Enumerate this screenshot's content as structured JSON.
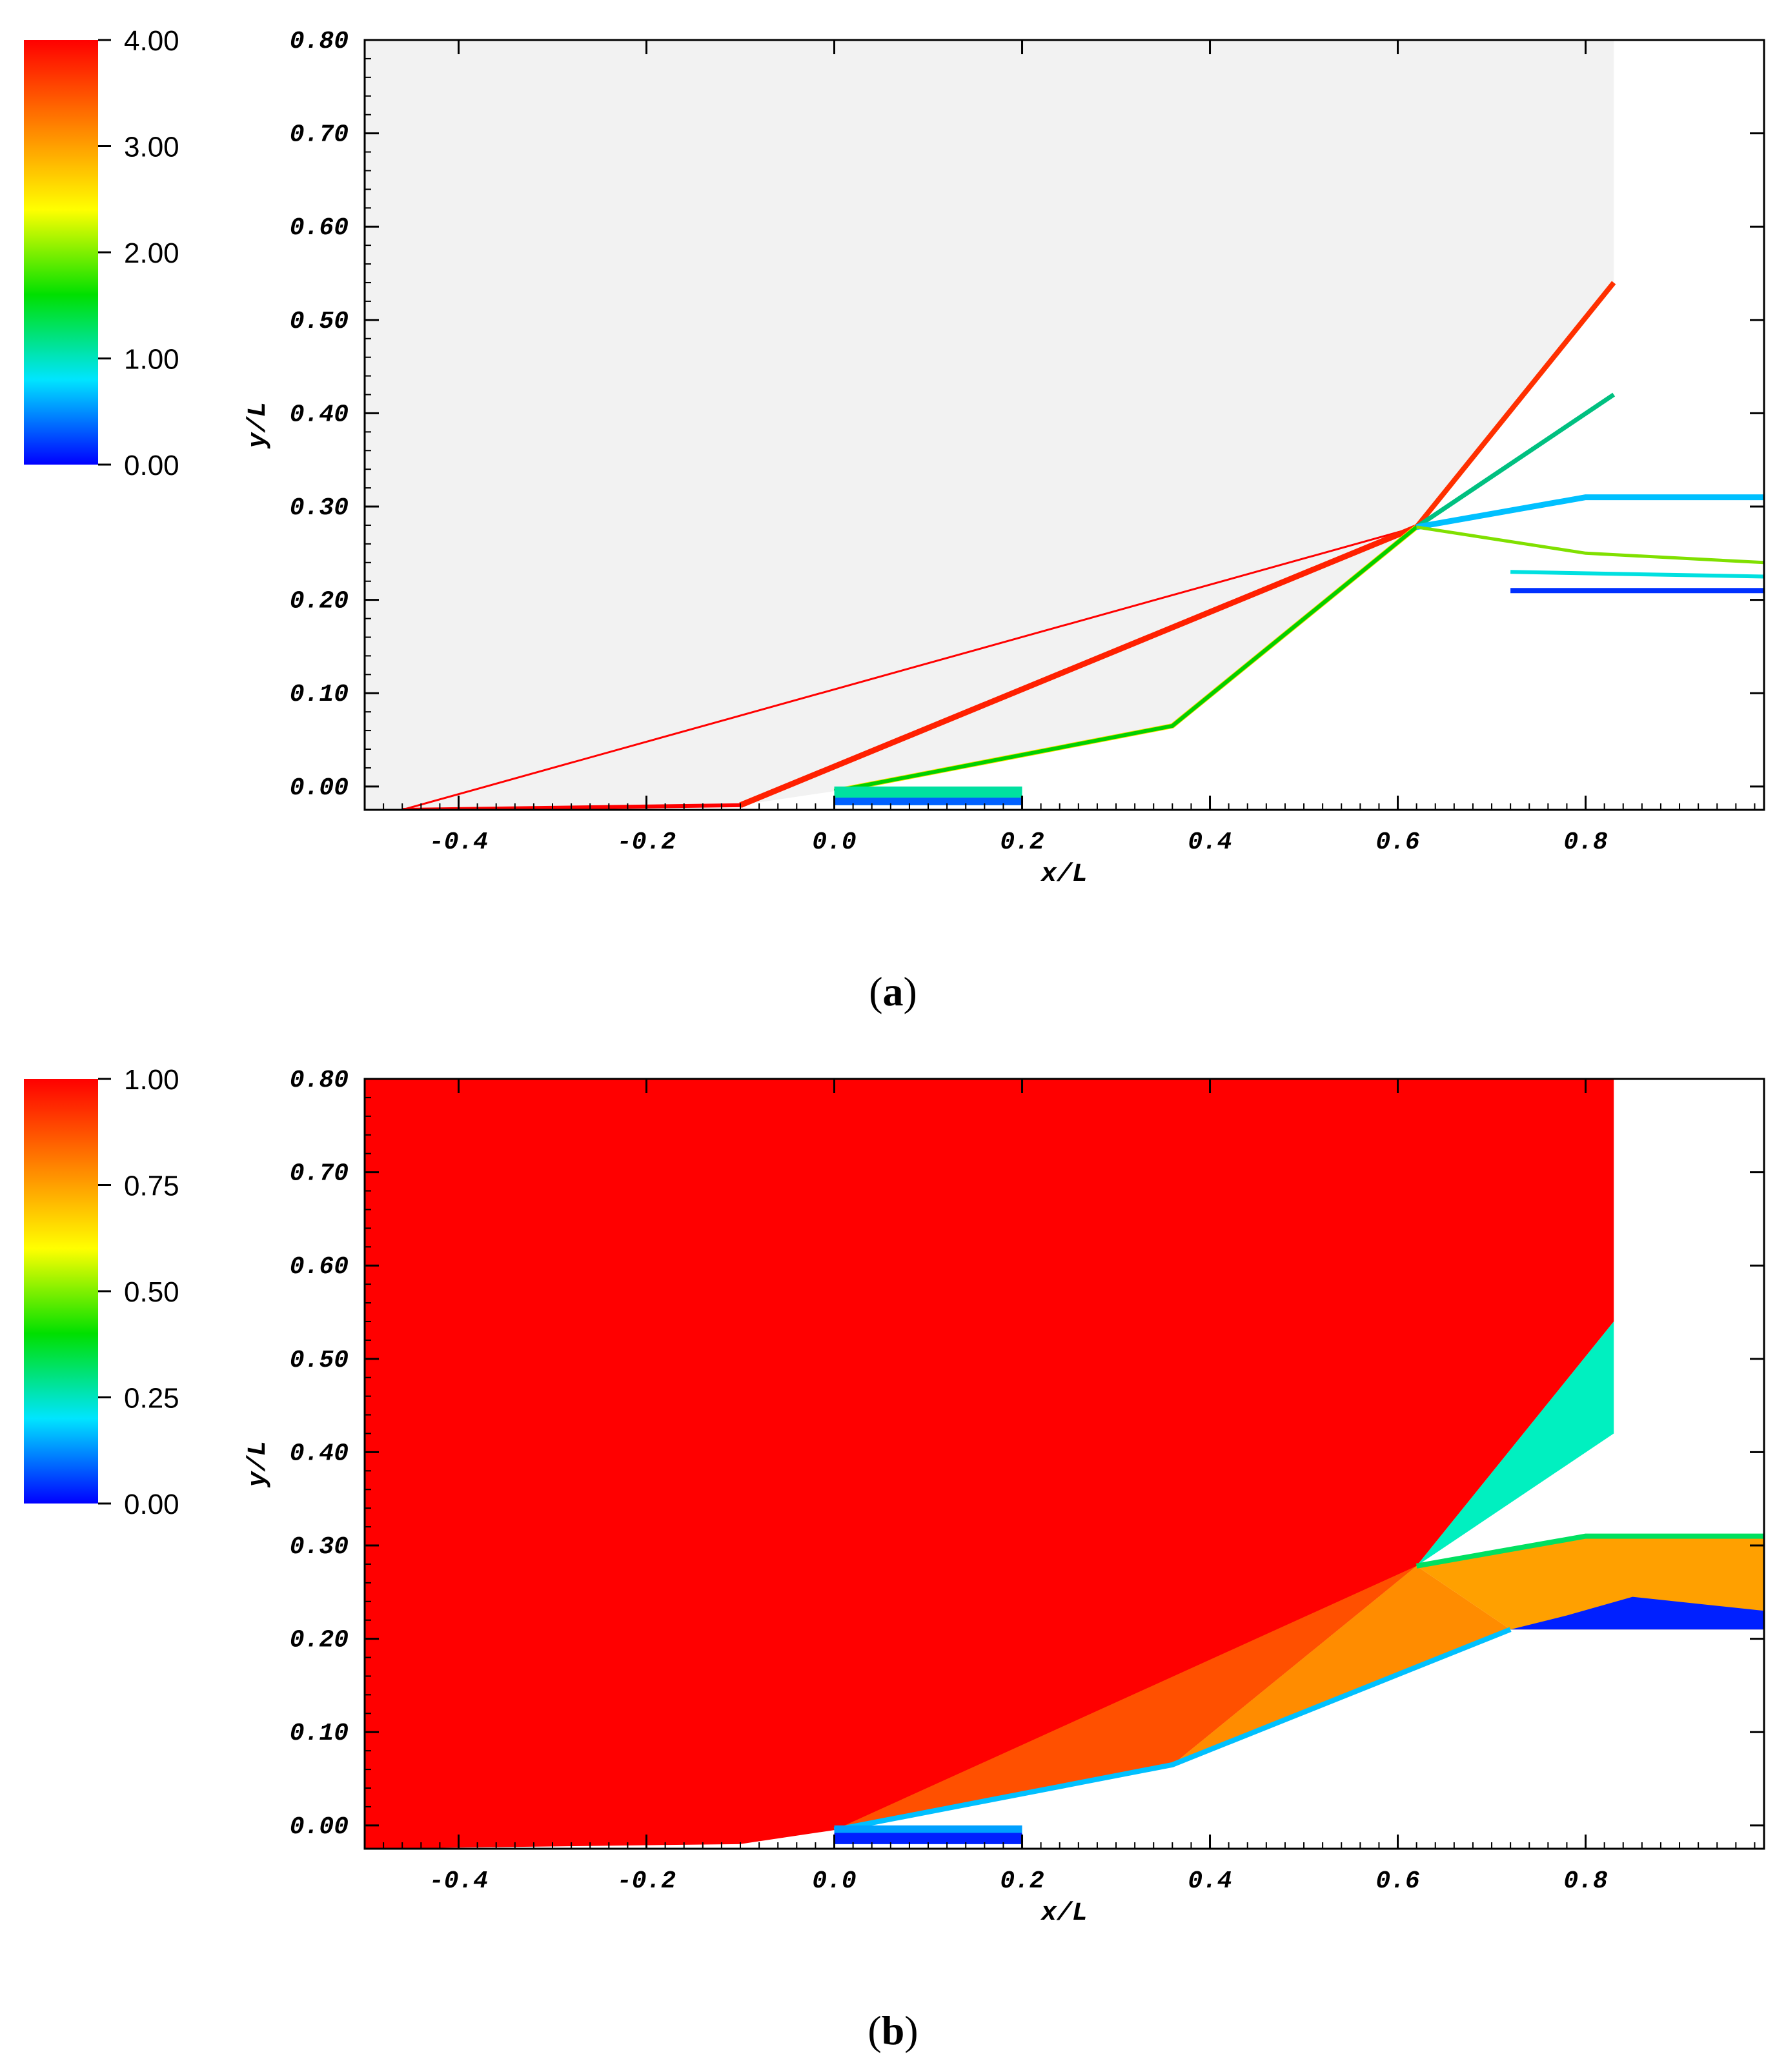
{
  "chart_data": [
    {
      "type": "heatmap",
      "style": "contour-lines",
      "panel": "a",
      "caption_open": "(",
      "caption_letter": "a",
      "caption_close": ")",
      "xlabel": "x/L",
      "ylabel": "y/L",
      "xlim": [
        -0.5,
        0.99
      ],
      "ylim": [
        -0.025,
        0.8
      ],
      "xticks": [
        -0.4,
        -0.2,
        0.0,
        0.2,
        0.4,
        0.6,
        0.8
      ],
      "xtick_labels": [
        "-0.4",
        "-0.2",
        "0.0",
        "0.2",
        "0.4",
        "0.6",
        "0.8"
      ],
      "yticks": [
        0.0,
        0.1,
        0.2,
        0.3,
        0.4,
        0.5,
        0.6,
        0.7,
        0.8
      ],
      "ytick_labels": [
        "0.00",
        "0.10",
        "0.20",
        "0.30",
        "0.40",
        "0.50",
        "0.60",
        "0.70",
        "0.80"
      ],
      "colorbar": {
        "min": 0,
        "max": 4,
        "ticks": [
          0,
          1,
          2,
          3,
          4
        ],
        "tick_labels": [
          "0.00",
          "1.00",
          "2.00",
          "3.00",
          "4.00"
        ],
        "colors": [
          "#0000ff",
          "#00e5ff",
          "#00e000",
          "#ffff00",
          "#ff8000",
          "#ff0000"
        ]
      },
      "background_color": "#f2f2f2",
      "grid": false
    },
    {
      "type": "heatmap",
      "style": "filled-contour",
      "panel": "b",
      "caption_open": "(",
      "caption_letter": "b",
      "caption_close": ")",
      "xlabel": "x/L",
      "ylabel": "y/L",
      "xlim": [
        -0.5,
        0.99
      ],
      "ylim": [
        -0.025,
        0.8
      ],
      "xticks": [
        -0.4,
        -0.2,
        0.0,
        0.2,
        0.4,
        0.6,
        0.8
      ],
      "xtick_labels": [
        "-0.4",
        "-0.2",
        "0.0",
        "0.2",
        "0.4",
        "0.6",
        "0.8"
      ],
      "yticks": [
        0.0,
        0.1,
        0.2,
        0.3,
        0.4,
        0.5,
        0.6,
        0.7,
        0.8
      ],
      "ytick_labels": [
        "0.00",
        "0.10",
        "0.20",
        "0.30",
        "0.40",
        "0.50",
        "0.60",
        "0.70",
        "0.80"
      ],
      "colorbar": {
        "min": 0,
        "max": 1,
        "ticks": [
          0,
          0.25,
          0.5,
          0.75,
          1
        ],
        "tick_labels": [
          "0.00",
          "0.25",
          "0.50",
          "0.75",
          "1.00"
        ],
        "colors": [
          "#0000ff",
          "#00e5ff",
          "#00e000",
          "#ffff00",
          "#ff8000",
          "#ff0000"
        ]
      },
      "background_color": "#ff0000",
      "grid": false
    }
  ],
  "geometry": {
    "ramp_surface": [
      [
        -0.46,
        -0.025
      ],
      [
        -0.1,
        -0.02
      ],
      [
        0.0,
        -0.005
      ],
      [
        0.36,
        0.065
      ],
      [
        0.62,
        0.278
      ],
      [
        0.72,
        0.21
      ],
      [
        0.99,
        0.21
      ]
    ],
    "cowl_top": [
      [
        0.62,
        0.278
      ],
      [
        0.8,
        0.31
      ],
      [
        0.99,
        0.31
      ]
    ],
    "upper_domain_edge_x": 0.83,
    "lip_plate": [
      [
        0.0,
        0.0
      ],
      [
        0.2,
        0.0
      ],
      [
        0.2,
        -0.02
      ],
      [
        0.0,
        -0.02
      ]
    ]
  }
}
